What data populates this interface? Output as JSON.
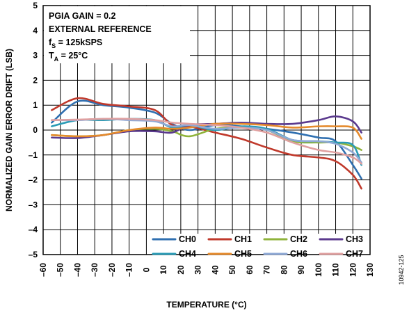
{
  "figure_id": "10942-125",
  "chart_data": {
    "type": "line",
    "title": "",
    "xlabel": "TEMPERATURE (°C)",
    "ylabel": "NORMALIZED GAIN ERROR DRIFT (LSB)",
    "xlim": [
      -60,
      130
    ],
    "ylim": [
      -5,
      5
    ],
    "x_ticks": [
      -60,
      -50,
      -40,
      -30,
      -20,
      -10,
      0,
      10,
      20,
      30,
      40,
      50,
      60,
      70,
      80,
      90,
      100,
      110,
      120,
      130
    ],
    "y_ticks": [
      5,
      4,
      3,
      2,
      1,
      0,
      -1,
      -2,
      -3,
      -4,
      -5
    ],
    "grid": true,
    "legend_position": "bottom-right",
    "annotations": [
      {
        "text": "PGIA GAIN = 0.2"
      },
      {
        "text": "EXTERNAL REFERENCE"
      },
      {
        "text": "f",
        "sub": "S",
        "rest": " = 125kSPS"
      },
      {
        "text": "T",
        "sub": "A",
        "rest": " = 25°C"
      }
    ],
    "x": [
      -55,
      -40,
      -25,
      -10,
      5,
      15,
      25,
      40,
      55,
      70,
      85,
      100,
      110,
      120,
      125
    ],
    "series": [
      {
        "name": "CH0",
        "color": "#2f6fb0",
        "values": [
          0.3,
          1.15,
          1.0,
          0.9,
          0.7,
          0.25,
          0.0,
          0.2,
          0.15,
          0.05,
          -0.1,
          -0.3,
          -0.45,
          -1.4,
          -1.95
        ]
      },
      {
        "name": "CH1",
        "color": "#c0392b",
        "values": [
          0.8,
          1.28,
          1.05,
          0.95,
          0.8,
          0.2,
          0.15,
          -0.1,
          -0.35,
          -0.7,
          -1.0,
          -1.1,
          -1.25,
          -1.8,
          -2.35
        ]
      },
      {
        "name": "CH2",
        "color": "#8fb33b",
        "values": [
          -0.2,
          -0.25,
          -0.2,
          0.0,
          0.05,
          -0.05,
          -0.25,
          0.05,
          0.1,
          0.0,
          -0.45,
          -0.5,
          -0.5,
          -0.65,
          -0.8
        ]
      },
      {
        "name": "CH3",
        "color": "#5b3a8e",
        "values": [
          -0.3,
          -0.32,
          -0.2,
          -0.05,
          -0.05,
          -0.1,
          0.2,
          0.25,
          0.3,
          0.25,
          0.25,
          0.4,
          0.55,
          0.35,
          -0.1
        ]
      },
      {
        "name": "CH4",
        "color": "#2a9bb5",
        "values": [
          0.15,
          0.4,
          0.4,
          0.45,
          0.4,
          0.1,
          0.2,
          0.0,
          0.15,
          0.05,
          -0.4,
          -0.45,
          -0.5,
          -0.6,
          -1.4
        ]
      },
      {
        "name": "CH5",
        "color": "#e58a2c",
        "values": [
          -0.2,
          -0.25,
          -0.2,
          0.0,
          0.1,
          0.05,
          0.1,
          0.25,
          0.25,
          0.2,
          0.1,
          0.15,
          0.15,
          0.1,
          -0.35
        ]
      },
      {
        "name": "CH6",
        "color": "#8fa9d6",
        "values": [
          0.4,
          0.4,
          0.45,
          0.4,
          0.35,
          0.15,
          0.2,
          0.05,
          0.1,
          0.0,
          -0.4,
          -0.45,
          -0.55,
          -0.9,
          -1.3
        ]
      },
      {
        "name": "CH7",
        "color": "#e0a0a0",
        "values": [
          0.4,
          0.42,
          0.45,
          0.45,
          0.4,
          0.3,
          0.25,
          0.2,
          0.1,
          -0.1,
          -0.5,
          -0.8,
          -0.9,
          -1.1,
          -1.35
        ]
      }
    ]
  }
}
